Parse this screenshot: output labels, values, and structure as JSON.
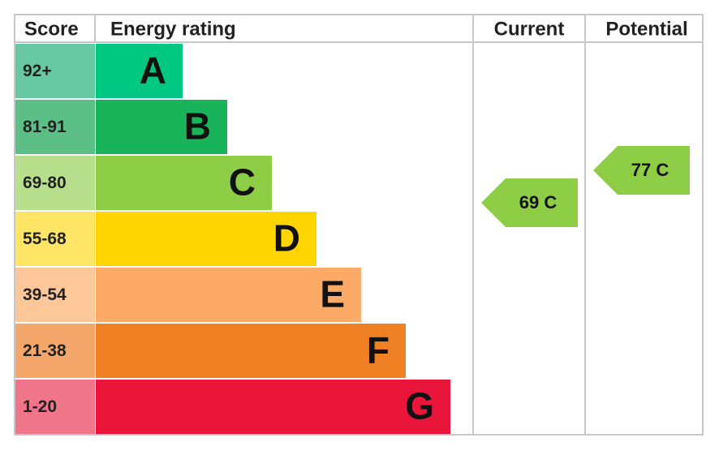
{
  "header": {
    "score": "Score",
    "rating": "Energy rating",
    "current": "Current",
    "potential": "Potential"
  },
  "bands": [
    {
      "range": "92+",
      "letter": "A",
      "color": "#00c781",
      "light": "#66c9a4"
    },
    {
      "range": "81-91",
      "letter": "B",
      "color": "#19b459",
      "light": "#5cbf86"
    },
    {
      "range": "69-80",
      "letter": "C",
      "color": "#8dce46",
      "light": "#b8e08c"
    },
    {
      "range": "55-68",
      "letter": "D",
      "color": "#ffd500",
      "light": "#ffe566"
    },
    {
      "range": "39-54",
      "letter": "E",
      "color": "#fcaa65",
      "light": "#fdc79a"
    },
    {
      "range": "21-38",
      "letter": "F",
      "color": "#ef8023",
      "light": "#f4a66b"
    },
    {
      "range": "1-20",
      "letter": "G",
      "color": "#e9153b",
      "light": "#f0748a"
    }
  ],
  "current": {
    "label": "69 C",
    "color": "#8dce46"
  },
  "potential": {
    "label": "77 C",
    "color": "#8dce46"
  }
}
